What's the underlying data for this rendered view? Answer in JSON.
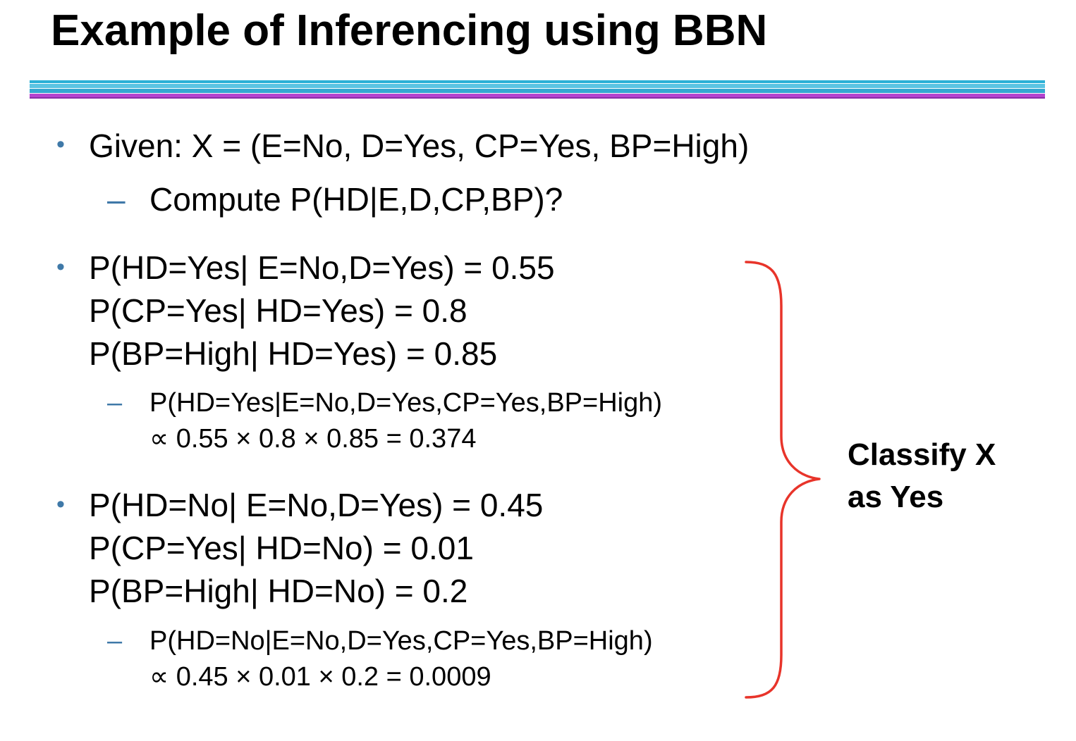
{
  "title": "Example of Inferencing using BBN",
  "colors": {
    "rule_top": "#2ab0d6",
    "rule_bottom": "#a33bbf",
    "bullet": "#3f79a8",
    "brace": "#e8342a"
  },
  "given": {
    "text": "Given: X = (E=No, D=Yes, CP=Yes, BP=High)",
    "sub": "Compute P(HD|E,D,CP,BP)?"
  },
  "yes_block": {
    "lines": [
      "P(HD=Yes| E=No,D=Yes) = 0.55",
      "P(CP=Yes| HD=Yes) = 0.8",
      "P(BP=High| HD=Yes) = 0.85"
    ],
    "sub_line1": "P(HD=Yes|E=No,D=Yes,CP=Yes,BP=High)",
    "sub_line2": "∝ 0.55 × 0.8 × 0.85 = 0.374"
  },
  "no_block": {
    "lines": [
      "P(HD=No| E=No,D=Yes) = 0.45",
      "P(CP=Yes| HD=No) = 0.01",
      "P(BP=High| HD=No) = 0.2"
    ],
    "sub_line1": "P(HD=No|E=No,D=Yes,CP=Yes,BP=High)",
    "sub_line2": "∝ 0.45 × 0.01 × 0.2 = 0.0009"
  },
  "conclusion": {
    "line1": "Classify X",
    "line2": "as Yes"
  },
  "bullet_char": "•",
  "dash_char": "–"
}
